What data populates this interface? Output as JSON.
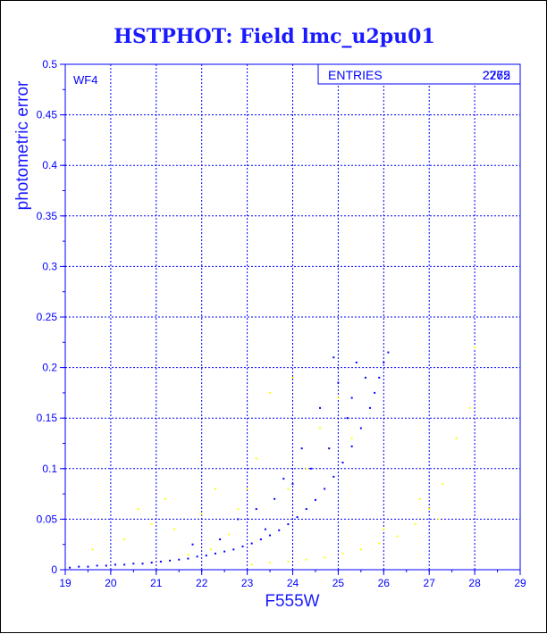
{
  "chart_data": {
    "type": "scatter",
    "title": "HSTPHOT: Field lmc_u2pu01",
    "panel_label": "WF4",
    "xlabel": "F555W",
    "ylabel": "photometric error",
    "xlim": [
      19,
      29
    ],
    "ylim": [
      0,
      0.5
    ],
    "x_ticks": [
      "19",
      "20",
      "21",
      "22",
      "23",
      "24",
      "25",
      "26",
      "27",
      "28",
      "29"
    ],
    "y_ticks": [
      "0",
      "0.05",
      "0.1",
      "0.15",
      "0.2",
      "0.25",
      "0.3",
      "0.35",
      "0.4",
      "0.45",
      "0.5"
    ],
    "grid": true,
    "stats_box": {
      "label": "ENTRIES",
      "values": [
        "2775",
        "2262"
      ]
    },
    "colors": {
      "primary": "#0000ff",
      "secondary": "#ffff00",
      "text": "#1a1aff"
    },
    "series": [
      {
        "color": "#0000ff",
        "points": [
          [
            19.1,
            0.002
          ],
          [
            19.3,
            0.003
          ],
          [
            19.5,
            0.003
          ],
          [
            19.7,
            0.004
          ],
          [
            19.9,
            0.004
          ],
          [
            20.1,
            0.005
          ],
          [
            20.3,
            0.005
          ],
          [
            20.5,
            0.006
          ],
          [
            20.7,
            0.006
          ],
          [
            20.9,
            0.007
          ],
          [
            21.1,
            0.008
          ],
          [
            21.3,
            0.009
          ],
          [
            21.5,
            0.01
          ],
          [
            21.7,
            0.011
          ],
          [
            21.9,
            0.013
          ],
          [
            22.1,
            0.014
          ],
          [
            22.3,
            0.016
          ],
          [
            22.5,
            0.018
          ],
          [
            22.7,
            0.02
          ],
          [
            22.9,
            0.023
          ],
          [
            23.1,
            0.026
          ],
          [
            23.3,
            0.03
          ],
          [
            23.5,
            0.034
          ],
          [
            23.7,
            0.039
          ],
          [
            23.9,
            0.045
          ],
          [
            24.1,
            0.052
          ],
          [
            24.3,
            0.06
          ],
          [
            24.5,
            0.069
          ],
          [
            24.7,
            0.08
          ],
          [
            24.9,
            0.092
          ],
          [
            25.1,
            0.106
          ],
          [
            25.3,
            0.122
          ],
          [
            25.5,
            0.14
          ],
          [
            25.7,
            0.16
          ],
          [
            25.8,
            0.175
          ],
          [
            25.9,
            0.19
          ],
          [
            26.0,
            0.205
          ],
          [
            26.1,
            0.215
          ],
          [
            22.8,
            0.05
          ],
          [
            23.2,
            0.06
          ],
          [
            23.6,
            0.07
          ],
          [
            24.0,
            0.085
          ],
          [
            24.4,
            0.1
          ],
          [
            24.8,
            0.12
          ],
          [
            25.2,
            0.15
          ],
          [
            25.0,
            0.185
          ],
          [
            24.6,
            0.16
          ],
          [
            23.4,
            0.04
          ],
          [
            22.4,
            0.03
          ],
          [
            21.8,
            0.025
          ],
          [
            24.9,
            0.21
          ],
          [
            25.4,
            0.205
          ],
          [
            25.6,
            0.19
          ],
          [
            24.2,
            0.12
          ],
          [
            23.8,
            0.09
          ],
          [
            25.3,
            0.17
          ]
        ]
      },
      {
        "color": "#ffff00",
        "points": [
          [
            19.6,
            0.02
          ],
          [
            20.3,
            0.03
          ],
          [
            20.9,
            0.045
          ],
          [
            21.4,
            0.04
          ],
          [
            22.0,
            0.055
          ],
          [
            22.3,
            0.08
          ],
          [
            22.8,
            0.06
          ],
          [
            23.0,
            0.08
          ],
          [
            23.2,
            0.11
          ],
          [
            23.5,
            0.175
          ],
          [
            23.9,
            0.08
          ],
          [
            24.3,
            0.1
          ],
          [
            24.6,
            0.14
          ],
          [
            24.8,
            0.12
          ],
          [
            25.0,
            0.17
          ],
          [
            25.3,
            0.13
          ],
          [
            23.1,
            0.005
          ],
          [
            23.5,
            0.007
          ],
          [
            23.9,
            0.008
          ],
          [
            24.3,
            0.01
          ],
          [
            24.7,
            0.012
          ],
          [
            25.1,
            0.016
          ],
          [
            25.5,
            0.02
          ],
          [
            25.9,
            0.026
          ],
          [
            26.3,
            0.033
          ],
          [
            26.7,
            0.045
          ],
          [
            27.0,
            0.06
          ],
          [
            27.3,
            0.085
          ],
          [
            27.6,
            0.13
          ],
          [
            27.9,
            0.16
          ],
          [
            28.0,
            0.22
          ],
          [
            20.6,
            0.06
          ],
          [
            21.2,
            0.07
          ],
          [
            22.6,
            0.035
          ],
          [
            26.0,
            0.04
          ],
          [
            26.8,
            0.07
          ],
          [
            27.2,
            0.05
          ],
          [
            21.7,
            0.015
          ],
          [
            22.2,
            0.02
          ],
          [
            24.0,
            0.19
          ]
        ]
      }
    ]
  }
}
